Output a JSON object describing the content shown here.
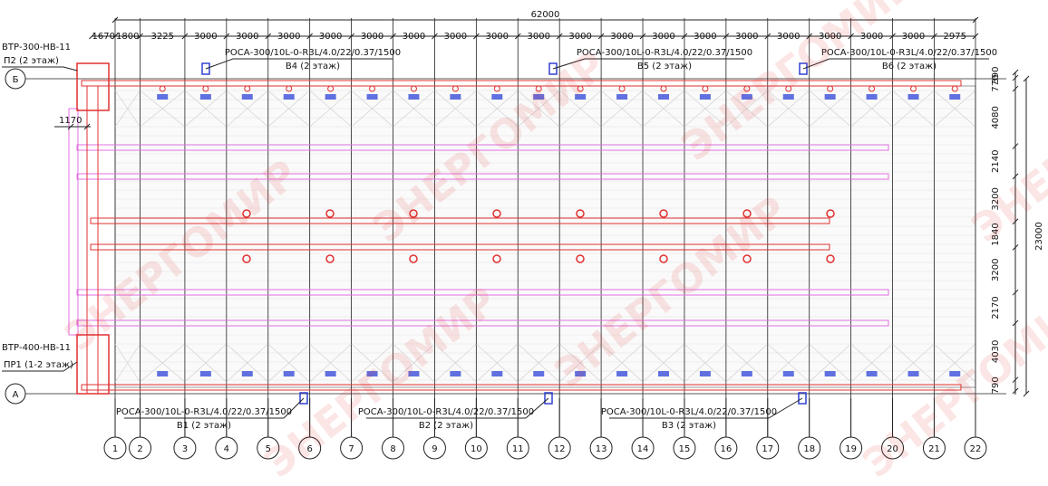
{
  "dimensions": {
    "total_width": 62000,
    "offset_left": 1670,
    "spans": [
      1800,
      3225,
      3000,
      3000,
      3000,
      3000,
      3000,
      3000,
      3000,
      3000,
      3000,
      3000,
      3000,
      3000,
      3000,
      3000,
      3000,
      3000,
      3000,
      3000,
      2975
    ],
    "left_offset": 1170,
    "right": [
      390,
      770,
      4080,
      2140,
      3200,
      1840,
      3200,
      2170,
      4030,
      790
    ],
    "total_height": 23000
  },
  "axes": {
    "rows": [
      "Б",
      "А"
    ],
    "columns": [
      "1",
      "2",
      "3",
      "4",
      "5",
      "6",
      "7",
      "8",
      "9",
      "10",
      "11",
      "12",
      "13",
      "14",
      "15",
      "16",
      "17",
      "18",
      "19",
      "20",
      "21",
      "22"
    ]
  },
  "equipment": [
    {
      "model": "ВТР-300-НВ-11",
      "tag": "П2 (2 этаж)"
    },
    {
      "model": "ВТР-400-НВ-11",
      "tag": "ПР1 (1-2 этаж)"
    }
  ],
  "units": [
    {
      "model": "РОСА-300/10L-0-R3L/4.0/22/0.37/1500",
      "tag": "В4 (2 этаж)"
    },
    {
      "model": "РОСА-300/10L-0-R3L/4.0/22/0.37/1500",
      "tag": "В5 (2 этаж)"
    },
    {
      "model": "РОСА-300/10L-0-R3L/4.0/22/0.37/1500",
      "tag": "В6 (2 этаж)"
    },
    {
      "model": "РОСА-300/10L-0-R3L/4.0/22/0.37/1500",
      "tag": "В1 (2 этаж)"
    },
    {
      "model": "РОСА-300/10L-0-R3L/4.0/22/0.37/1500",
      "tag": "В2 (2 этаж)"
    },
    {
      "model": "РОСА-300/10L-0-R3L/4.0/22/0.37/1500",
      "tag": "В3 (2 этаж)"
    }
  ],
  "watermark": "ЭНЕРГОМИР"
}
